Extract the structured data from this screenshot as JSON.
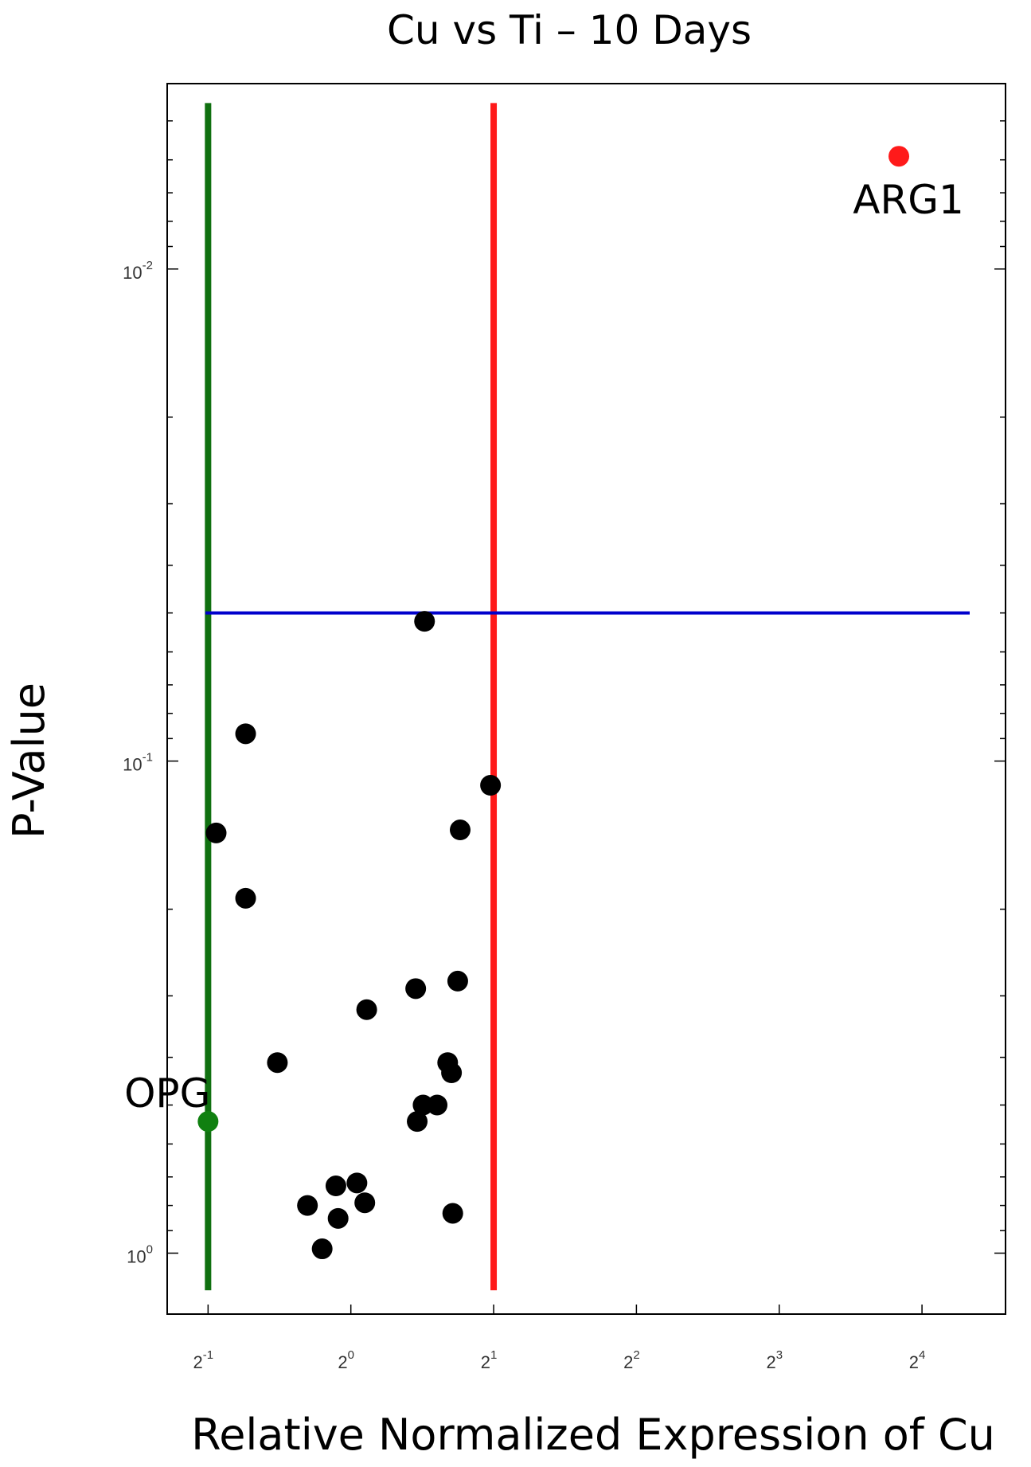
{
  "chart_data": {
    "type": "scatter",
    "title": "Cu vs Ti – 10 Days",
    "xlabel": "Relative Normalized Expression of Cu",
    "ylabel": "P-Value",
    "x_scale": "log2",
    "y_scale": "log10-reversed",
    "xlim": [
      0.41,
      24
    ],
    "ylim": [
      1.33,
      0.0042
    ],
    "x_ticks": [
      {
        "base": "2",
        "exp": "-1",
        "value": 0.5
      },
      {
        "base": "2",
        "exp": "0",
        "value": 1
      },
      {
        "base": "2",
        "exp": "1",
        "value": 2
      },
      {
        "base": "2",
        "exp": "2",
        "value": 4
      },
      {
        "base": "2",
        "exp": "3",
        "value": 8
      },
      {
        "base": "2",
        "exp": "4",
        "value": 16
      }
    ],
    "y_ticks": [
      {
        "base": "10",
        "exp": "-2",
        "value": 0.01
      },
      {
        "base": "10",
        "exp": "-1",
        "value": 0.1
      },
      {
        "base": "10",
        "exp": "0",
        "value": 1
      }
    ],
    "thresholds": {
      "down_fold": 0.5,
      "up_fold": 2,
      "p_value": 0.05,
      "down_color": "#107010",
      "up_color": "#ff1a1a",
      "p_color": "#0000cc"
    },
    "points": [
      {
        "x": 14.3,
        "y": 0.0059,
        "color": "#ff1a1a",
        "label": "ARG1"
      },
      {
        "x": 0.5,
        "y": 0.54,
        "color": "#108010",
        "label": "OPG"
      },
      {
        "x": 1.43,
        "y": 0.052
      },
      {
        "x": 0.6,
        "y": 0.088
      },
      {
        "x": 0.52,
        "y": 0.14
      },
      {
        "x": 1.97,
        "y": 0.112
      },
      {
        "x": 1.7,
        "y": 0.138
      },
      {
        "x": 0.6,
        "y": 0.19
      },
      {
        "x": 1.37,
        "y": 0.29
      },
      {
        "x": 1.68,
        "y": 0.28
      },
      {
        "x": 1.08,
        "y": 0.32
      },
      {
        "x": 0.7,
        "y": 0.41
      },
      {
        "x": 1.6,
        "y": 0.41
      },
      {
        "x": 1.63,
        "y": 0.43
      },
      {
        "x": 1.42,
        "y": 0.5
      },
      {
        "x": 1.52,
        "y": 0.5
      },
      {
        "x": 1.38,
        "y": 0.54
      },
      {
        "x": 0.93,
        "y": 0.73
      },
      {
        "x": 1.03,
        "y": 0.72
      },
      {
        "x": 0.81,
        "y": 0.8
      },
      {
        "x": 1.07,
        "y": 0.79
      },
      {
        "x": 0.94,
        "y": 0.85
      },
      {
        "x": 1.64,
        "y": 0.83
      },
      {
        "x": 0.87,
        "y": 0.98
      }
    ]
  }
}
